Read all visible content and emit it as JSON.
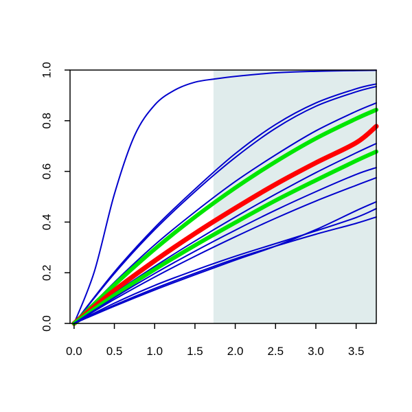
{
  "chart_data": {
    "type": "line",
    "title": "",
    "xlabel": "",
    "ylabel": "",
    "xlim": [
      -0.05,
      3.75
    ],
    "ylim": [
      0.0,
      1.0
    ],
    "x_ticks": [
      0.0,
      0.5,
      1.0,
      1.5,
      2.0,
      2.5,
      3.0,
      3.5
    ],
    "x_tick_labels": [
      "0.0",
      "0.5",
      "1.0",
      "1.5",
      "2.0",
      "2.5",
      "3.0",
      "3.5"
    ],
    "y_ticks": [
      0.0,
      0.2,
      0.4,
      0.6,
      0.8,
      1.0
    ],
    "y_tick_labels": [
      "0.0",
      "0.2",
      "0.4",
      "0.6",
      "0.8",
      "1.0"
    ],
    "grid": false,
    "legend": "none",
    "shaded_region": {
      "x": [
        1.73,
        3.75
      ],
      "color": "#e0ecec"
    },
    "colors": {
      "blue": "#0000cc",
      "green": "#00e600",
      "red": "#ff0000",
      "shade": "#e0ecec"
    },
    "series": [
      {
        "color": "#0000cc",
        "width": 2,
        "x": [
          0.0,
          0.25,
          0.5,
          0.75,
          1.0,
          1.25,
          1.5,
          1.75,
          2.0,
          2.5,
          3.0,
          3.5,
          3.75
        ],
        "y": [
          0.0,
          0.203,
          0.51,
          0.741,
          0.862,
          0.921,
          0.952,
          0.965,
          0.975,
          0.989,
          0.995,
          0.998,
          0.999
        ]
      },
      {
        "color": "#0000cc",
        "width": 2,
        "x": [
          0.0,
          0.5,
          1.0,
          1.5,
          2.0,
          2.5,
          3.0,
          3.5,
          3.75
        ],
        "y": [
          0.0,
          0.203,
          0.378,
          0.53,
          0.67,
          0.785,
          0.87,
          0.926,
          0.945
        ]
      },
      {
        "color": "#0000cc",
        "width": 2,
        "x": [
          0.0,
          0.5,
          1.0,
          1.5,
          2.0,
          2.5,
          3.0,
          3.5,
          3.75
        ],
        "y": [
          0.0,
          0.197,
          0.37,
          0.52,
          0.655,
          0.77,
          0.857,
          0.914,
          0.935
        ]
      },
      {
        "color": "#0000cc",
        "width": 2,
        "x": [
          0.0,
          0.5,
          1.0,
          1.5,
          2.0,
          2.5,
          3.0,
          3.5,
          3.75
        ],
        "y": [
          0.0,
          0.162,
          0.31,
          0.44,
          0.56,
          0.665,
          0.76,
          0.837,
          0.87
        ]
      },
      {
        "color": "#00e600",
        "width": 6,
        "x": [
          0.0,
          0.5,
          1.0,
          1.5,
          2.0,
          2.5,
          3.0,
          3.5,
          3.75
        ],
        "y": [
          0.0,
          0.152,
          0.293,
          0.42,
          0.535,
          0.638,
          0.73,
          0.808,
          0.843
        ]
      },
      {
        "color": "#ff0000",
        "width": 7,
        "x": [
          0.0,
          0.5,
          1.0,
          1.5,
          2.0,
          2.5,
          3.0,
          3.5,
          3.75
        ],
        "y": [
          0.0,
          0.13,
          0.247,
          0.355,
          0.455,
          0.549,
          0.634,
          0.713,
          0.778
        ]
      },
      {
        "color": "#0000cc",
        "width": 2,
        "x": [
          0.0,
          0.5,
          1.0,
          1.5,
          2.0,
          2.5,
          3.0,
          3.5,
          3.75
        ],
        "y": [
          0.0,
          0.118,
          0.225,
          0.325,
          0.42,
          0.51,
          0.595,
          0.673,
          0.71
        ]
      },
      {
        "color": "#00e600",
        "width": 6,
        "x": [
          0.0,
          0.5,
          1.0,
          1.5,
          2.0,
          2.5,
          3.0,
          3.5,
          3.75
        ],
        "y": [
          0.0,
          0.111,
          0.213,
          0.308,
          0.398,
          0.485,
          0.565,
          0.642,
          0.678
        ]
      },
      {
        "color": "#0000cc",
        "width": 2,
        "x": [
          0.0,
          0.5,
          1.0,
          1.5,
          2.0,
          2.5,
          3.0,
          3.5,
          3.75
        ],
        "y": [
          0.0,
          0.102,
          0.197,
          0.285,
          0.368,
          0.447,
          0.52,
          0.588,
          0.615
        ]
      },
      {
        "color": "#0000cc",
        "width": 2,
        "x": [
          0.0,
          0.5,
          1.0,
          1.5,
          2.0,
          2.5,
          3.0,
          3.5,
          3.75
        ],
        "y": [
          0.0,
          0.095,
          0.183,
          0.265,
          0.342,
          0.415,
          0.483,
          0.545,
          0.575
        ]
      },
      {
        "color": "#0000cc",
        "width": 2,
        "x": [
          0.0,
          0.5,
          1.0,
          1.5,
          2.0,
          2.5,
          3.0,
          3.5,
          3.75
        ],
        "y": [
          0.0,
          0.068,
          0.132,
          0.192,
          0.25,
          0.305,
          0.37,
          0.445,
          0.48
        ]
      },
      {
        "color": "#0000cc",
        "width": 2,
        "x": [
          0.0,
          0.5,
          1.0,
          1.5,
          2.0,
          2.5,
          3.0,
          3.5,
          3.75
        ],
        "y": [
          0.0,
          0.08,
          0.15,
          0.21,
          0.265,
          0.315,
          0.365,
          0.418,
          0.453
        ]
      },
      {
        "color": "#0000cc",
        "width": 2,
        "x": [
          0.0,
          0.5,
          1.0,
          1.5,
          2.0,
          2.5,
          3.0,
          3.5,
          3.75
        ],
        "y": [
          0.0,
          0.072,
          0.138,
          0.198,
          0.255,
          0.305,
          0.352,
          0.395,
          0.42
        ]
      }
    ]
  }
}
